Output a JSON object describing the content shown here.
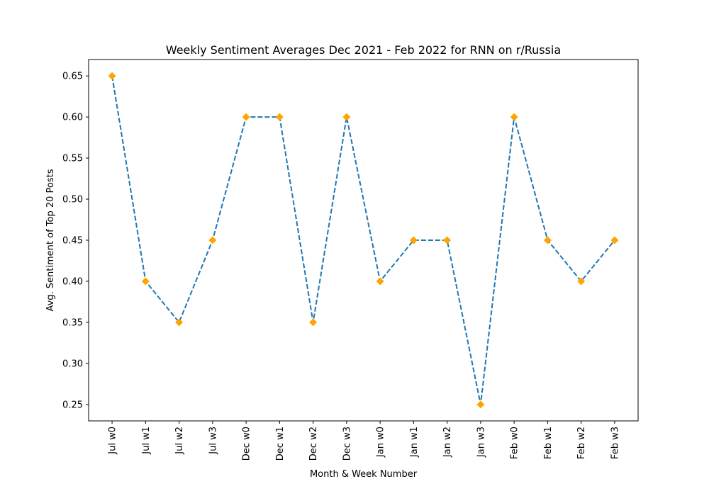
{
  "chart_data": {
    "type": "line",
    "title": "Weekly Sentiment Averages Dec 2021 - Feb 2022 for RNN on r/Russia",
    "xlabel": "Month & Week Number",
    "ylabel": "Avg. Sentiment of Top 20 Posts",
    "categories": [
      "Jul w0",
      "Jul w1",
      "Jul w2",
      "Jul w3",
      "Dec w0",
      "Dec w1",
      "Dec w2",
      "Dec w3",
      "Jan w0",
      "Jan w1",
      "Jan w2",
      "Jan w3",
      "Feb w0",
      "Feb w1",
      "Feb w2",
      "Feb w3"
    ],
    "series": [
      {
        "values": [
          0.65,
          0.4,
          0.35,
          0.45,
          0.6,
          0.6,
          0.35,
          0.6,
          0.4,
          0.45,
          0.45,
          0.25,
          0.6,
          0.45,
          0.4,
          0.45
        ],
        "line_color": "#1f77b4",
        "line_style": "dashed",
        "marker": "diamond",
        "marker_color": "#ffa500"
      }
    ],
    "yticks": [
      "0.25",
      "0.30",
      "0.35",
      "0.40",
      "0.45",
      "0.50",
      "0.55",
      "0.60",
      "0.65"
    ],
    "ylim": [
      0.23,
      0.67
    ],
    "grid": false,
    "legend": "none"
  }
}
